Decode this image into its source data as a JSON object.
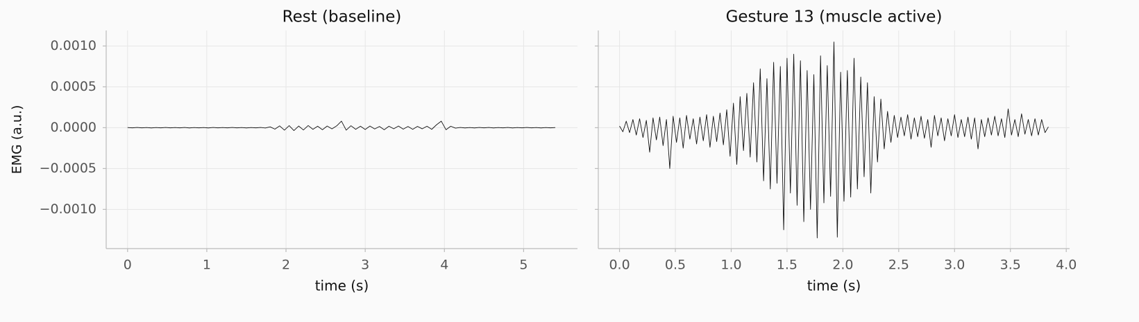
{
  "chart_data": [
    {
      "type": "line",
      "title": "Rest  (baseline)",
      "xlabel": "time (s)",
      "ylabel": "EMG (a.u.)",
      "color": "#111111",
      "grid": true,
      "xlim": [
        -0.27,
        5.68
      ],
      "xticks": [
        0,
        1,
        2,
        3,
        4,
        5
      ],
      "ylim": [
        -0.00148,
        0.00119
      ],
      "yticks": [
        {
          "value": 0.001,
          "label": "0.0010"
        },
        {
          "value": 0.0005,
          "label": "0.0005"
        },
        {
          "value": 0,
          "label": "0.0000"
        },
        {
          "value": -0.0005,
          "label": "−0.0005"
        },
        {
          "value": -0.001,
          "label": "−0.0010"
        }
      ],
      "x": [
        0,
        0.06,
        0.12,
        0.18,
        0.24,
        0.3,
        0.36,
        0.42,
        0.48,
        0.54,
        0.6,
        0.66,
        0.72,
        0.78,
        0.84,
        0.9,
        0.96,
        1.02,
        1.08,
        1.14,
        1.2,
        1.26,
        1.32,
        1.38,
        1.44,
        1.5,
        1.56,
        1.62,
        1.68,
        1.74,
        1.8,
        1.86,
        1.92,
        1.98,
        2.04,
        2.1,
        2.16,
        2.22,
        2.28,
        2.34,
        2.4,
        2.46,
        2.52,
        2.58,
        2.64,
        2.7,
        2.76,
        2.82,
        2.88,
        2.94,
        3,
        3.06,
        3.12,
        3.18,
        3.24,
        3.3,
        3.36,
        3.42,
        3.48,
        3.54,
        3.6,
        3.66,
        3.72,
        3.78,
        3.84,
        3.9,
        3.96,
        4.02,
        4.08,
        4.14,
        4.2,
        4.26,
        4.32,
        4.38,
        4.44,
        4.5,
        4.56,
        4.62,
        4.68,
        4.74,
        4.8,
        4.86,
        4.92,
        4.98,
        5.04,
        5.1,
        5.16,
        5.22,
        5.28,
        5.34,
        5.4
      ],
      "values": [
        2e-06,
        -2e-06,
        3e-06,
        -2e-06,
        2e-06,
        -3e-06,
        2e-06,
        -2e-06,
        3e-06,
        -2e-06,
        2e-06,
        -2e-06,
        3e-06,
        -3e-06,
        2e-06,
        -2e-06,
        2e-06,
        -3e-06,
        3e-06,
        -2e-06,
        2e-06,
        -2e-06,
        3e-06,
        -2e-06,
        2e-06,
        -3e-06,
        2e-06,
        -2e-06,
        3e-06,
        -4e-06,
        1e-05,
        -1.8e-05,
        2.2e-05,
        -3e-05,
        2.5e-05,
        -3.5e-05,
        2e-05,
        -2.8e-05,
        2.6e-05,
        -2e-05,
        1.8e-05,
        -2.5e-05,
        2e-05,
        -1.5e-05,
        2.2e-05,
        8e-05,
        -3e-05,
        2.4e-05,
        -2e-05,
        1.8e-05,
        -2.2e-05,
        2e-05,
        -1.6e-05,
        1.5e-05,
        -2.5e-05,
        1.8e-05,
        -1.4e-05,
        2e-05,
        -1.8e-05,
        1.5e-05,
        -2e-05,
        1.6e-05,
        -1.4e-05,
        1.8e-05,
        -2e-05,
        3.5e-05,
        8e-05,
        -2.5e-05,
        1.8e-05,
        -6e-06,
        3e-06,
        -3e-06,
        2e-06,
        -3e-06,
        3e-06,
        -2e-06,
        3e-06,
        -3e-06,
        2e-06,
        -2e-06,
        3e-06,
        -3e-06,
        2e-06,
        -2e-06,
        3e-06,
        -2e-06,
        2e-06,
        -3e-06,
        2e-06,
        -2e-06,
        2e-06
      ]
    },
    {
      "type": "line",
      "title": "Gesture 13  (muscle active)",
      "xlabel": "time (s)",
      "color": "#111111",
      "grid": true,
      "yticklabels": false,
      "xlim": [
        -0.19,
        4.03
      ],
      "xticks": [
        {
          "value": 0,
          "label": "0.0"
        },
        0.5,
        {
          "value": 1,
          "label": "1.0"
        },
        1.5,
        {
          "value": 2,
          "label": "2.0"
        },
        2.5,
        {
          "value": 3,
          "label": "3.0"
        },
        3.5,
        {
          "value": 4,
          "label": "4.0"
        }
      ],
      "ylim": [
        -0.00148,
        0.00119
      ],
      "yticks": [
        0.001,
        0.0005,
        0,
        -0.0005,
        -0.001
      ],
      "x": [
        0,
        0.03,
        0.06,
        0.09,
        0.12,
        0.15,
        0.18,
        0.21,
        0.24,
        0.27,
        0.3,
        0.33,
        0.36,
        0.39,
        0.42,
        0.45,
        0.48,
        0.51,
        0.54,
        0.57,
        0.6,
        0.63,
        0.66,
        0.69,
        0.72,
        0.75,
        0.78,
        0.81,
        0.84,
        0.87,
        0.9,
        0.93,
        0.96,
        0.99,
        1.02,
        1.05,
        1.08,
        1.11,
        1.14,
        1.17,
        1.2,
        1.23,
        1.26,
        1.29,
        1.32,
        1.35,
        1.38,
        1.41,
        1.44,
        1.47,
        1.5,
        1.53,
        1.56,
        1.59,
        1.62,
        1.65,
        1.68,
        1.71,
        1.74,
        1.77,
        1.8,
        1.83,
        1.86,
        1.89,
        1.92,
        1.95,
        1.98,
        2.01,
        2.04,
        2.07,
        2.1,
        2.13,
        2.16,
        2.19,
        2.22,
        2.25,
        2.28,
        2.31,
        2.34,
        2.37,
        2.4,
        2.43,
        2.46,
        2.49,
        2.52,
        2.55,
        2.58,
        2.61,
        2.64,
        2.67,
        2.7,
        2.73,
        2.76,
        2.79,
        2.82,
        2.85,
        2.88,
        2.91,
        2.94,
        2.97,
        3,
        3.03,
        3.06,
        3.09,
        3.12,
        3.15,
        3.18,
        3.21,
        3.24,
        3.27,
        3.3,
        3.33,
        3.36,
        3.39,
        3.42,
        3.45,
        3.48,
        3.51,
        3.54,
        3.57,
        3.6,
        3.63,
        3.66,
        3.69,
        3.72,
        3.75,
        3.78,
        3.81,
        3.84
      ],
      "values": [
        2e-05,
        -5e-05,
        8e-05,
        -6e-05,
        0.0001,
        -9e-05,
        0.00011,
        -0.00012,
        9e-05,
        -0.0003,
        0.00012,
        -0.00015,
        0.00013,
        -0.00022,
        0.0001,
        -0.0005,
        0.00014,
        -0.00018,
        0.00012,
        -0.00025,
        0.00015,
        -0.00014,
        0.00011,
        -0.0002,
        0.00013,
        -0.00016,
        0.00016,
        -0.00024,
        0.00014,
        -0.00017,
        0.00018,
        -0.00021,
        0.00022,
        -0.00035,
        0.0003,
        -0.00045,
        0.00038,
        -0.00028,
        0.00042,
        -0.00036,
        0.00055,
        -0.00042,
        0.00072,
        -0.00065,
        0.0006,
        -0.00075,
        0.0008,
        -0.00068,
        0.00075,
        -0.00125,
        0.00085,
        -0.0008,
        0.0009,
        -0.00095,
        0.00082,
        -0.00115,
        0.0007,
        -0.001,
        0.00065,
        -0.00135,
        0.00088,
        -0.00092,
        0.00076,
        -0.00084,
        0.00105,
        -0.00134,
        0.00068,
        -0.0009,
        0.0007,
        -0.00085,
        0.00085,
        -0.00075,
        0.00062,
        -0.0006,
        0.00055,
        -0.0008,
        0.00038,
        -0.00042,
        0.00035,
        -0.00026,
        0.0002,
        -0.00018,
        0.00015,
        -0.00012,
        0.00013,
        -0.0001,
        0.00016,
        -0.00014,
        0.00012,
        -0.00011,
        0.00014,
        -0.00013,
        0.0001,
        -0.00024,
        0.00015,
        -0.0001,
        0.00012,
        -0.00016,
        0.00011,
        -0.0001,
        0.00016,
        -0.00012,
        0.0001,
        -0.00011,
        0.00013,
        -0.00014,
        0.00012,
        -0.00026,
        0.0001,
        -0.00011,
        0.00012,
        -9e-05,
        0.00014,
        -0.0001,
        0.00011,
        -0.00012,
        0.00023,
        -9e-05,
        0.0001,
        -0.00011,
        0.00017,
        -8e-05,
        0.0001,
        -0.0001,
        0.00011,
        -9e-05,
        0.0001,
        -6e-05,
        1e-05
      ]
    }
  ]
}
